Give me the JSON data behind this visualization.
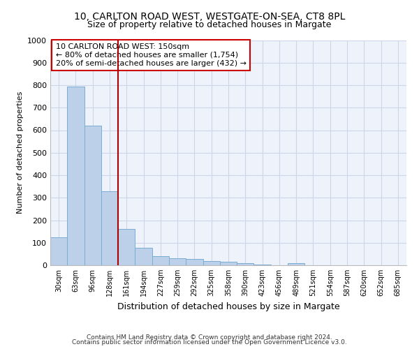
{
  "title1": "10, CARLTON ROAD WEST, WESTGATE-ON-SEA, CT8 8PL",
  "title2": "Size of property relative to detached houses in Margate",
  "xlabel": "Distribution of detached houses by size in Margate",
  "ylabel": "Number of detached properties",
  "bar_labels": [
    "30sqm",
    "63sqm",
    "96sqm",
    "128sqm",
    "161sqm",
    "194sqm",
    "227sqm",
    "259sqm",
    "292sqm",
    "325sqm",
    "358sqm",
    "390sqm",
    "423sqm",
    "456sqm",
    "489sqm",
    "521sqm",
    "554sqm",
    "587sqm",
    "620sqm",
    "652sqm",
    "685sqm"
  ],
  "bar_values": [
    125,
    795,
    620,
    330,
    160,
    78,
    40,
    30,
    27,
    18,
    14,
    8,
    2,
    0,
    10,
    0,
    0,
    0,
    0,
    0,
    0
  ],
  "bar_color": "#bdd0ea",
  "bar_edge_color": "#7aadd4",
  "red_line_x": 3.5,
  "annotation_line1": "10 CARLTON ROAD WEST: 150sqm",
  "annotation_line2": "← 80% of detached houses are smaller (1,754)",
  "annotation_line3": "20% of semi-detached houses are larger (432) →",
  "ylim": [
    0,
    1000
  ],
  "yticks": [
    0,
    100,
    200,
    300,
    400,
    500,
    600,
    700,
    800,
    900,
    1000
  ],
  "grid_color": "#cdd6e8",
  "footer1": "Contains HM Land Registry data © Crown copyright and database right 2024.",
  "footer2": "Contains public sector information licensed under the Open Government Licence v3.0.",
  "title1_fontsize": 10,
  "title2_fontsize": 9,
  "bar_line_color": "#aa0000",
  "annotation_box_color": "#cc0000",
  "background_color": "#eef2fa"
}
